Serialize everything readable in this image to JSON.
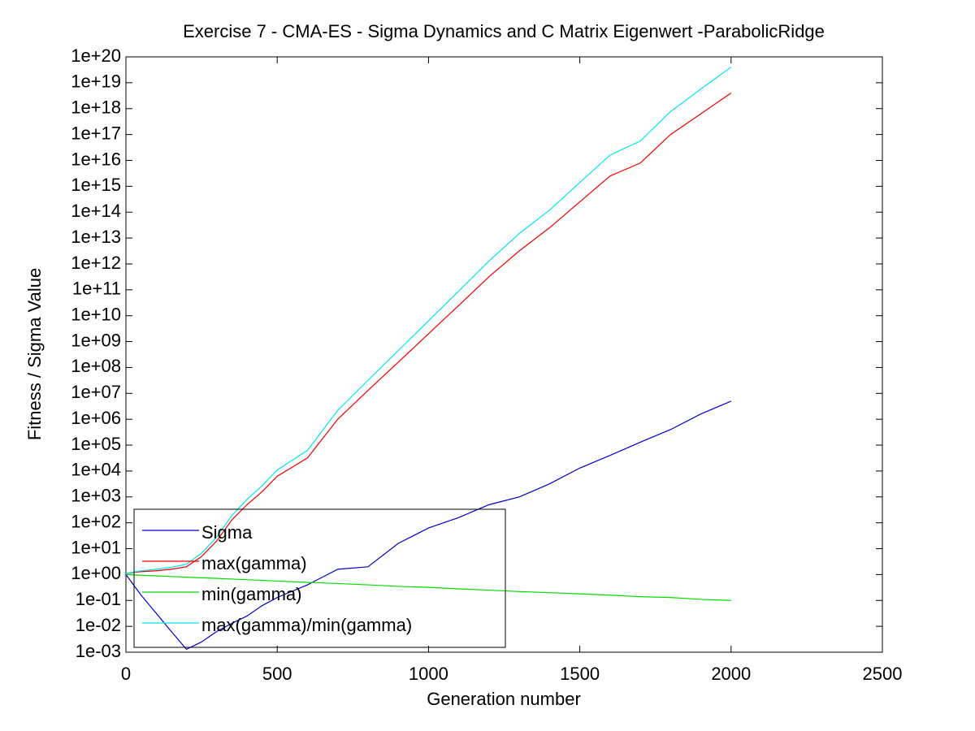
{
  "chart_data": {
    "type": "line",
    "title": "Exercise 7 - CMA-ES - Sigma Dynamics and C Matrix Eigenwert -ParabolicRidge",
    "x_label": "Generation number",
    "y_label": "Fitness / Sigma Value",
    "x": [
      0,
      50,
      100,
      150,
      200,
      250,
      300,
      350,
      400,
      450,
      500,
      600,
      700,
      800,
      900,
      1000,
      1100,
      1200,
      1300,
      1400,
      1500,
      1600,
      1700,
      1800,
      1900,
      2000
    ],
    "series": [
      {
        "name": "Sigma",
        "color": "#0000cc",
        "values": [
          1,
          0.16,
          0.032,
          0.0063,
          0.0013,
          0.0025,
          0.0063,
          0.013,
          0.025,
          0.063,
          0.13,
          0.4,
          1.6,
          2,
          16,
          63,
          160,
          500,
          1000,
          3200,
          13000,
          40000,
          130000,
          400000,
          1600000,
          5000000
        ]
      },
      {
        "name": "max(gamma)",
        "color": "#ee0000",
        "values": [
          1.1,
          1.3,
          1.4,
          1.6,
          2,
          5,
          20,
          130,
          500,
          1600,
          6300,
          32000,
          1000000,
          13000000,
          160000000,
          2000000000,
          25000000000,
          320000000000,
          3200000000000,
          25000000000000,
          250000000000000,
          2500000000000000,
          7900000000000000,
          100000000000000000,
          630000000000000000,
          4000000000000000000
        ]
      },
      {
        "name": "min(gamma)",
        "color": "#00dd00",
        "values": [
          1,
          0.94,
          0.89,
          0.84,
          0.79,
          0.75,
          0.71,
          0.67,
          0.63,
          0.6,
          0.56,
          0.5,
          0.45,
          0.4,
          0.35,
          0.32,
          0.28,
          0.25,
          0.22,
          0.2,
          0.18,
          0.16,
          0.14,
          0.13,
          0.11,
          0.1
        ]
      },
      {
        "name": "max(gamma)/min(gamma)",
        "color": "#00e5ee",
        "values": [
          1.1,
          1.4,
          1.6,
          1.9,
          2.5,
          6.7,
          28,
          190,
          800,
          2700,
          11000,
          63000,
          2200000,
          32000000,
          450000000,
          6300000000,
          90000000000,
          1300000000000,
          15000000000000,
          120000000000000,
          1400000000000000,
          16000000000000000,
          56000000000000000,
          770000000000000000,
          5700000000000000000,
          40000000000000000000
        ]
      }
    ],
    "xlim": [
      0,
      2500
    ],
    "xticks": [
      0,
      500,
      1000,
      1500,
      2000,
      2500
    ],
    "ylim": [
      0.001,
      1e+20
    ],
    "y_scale": "log",
    "yticks": [
      {
        "value": 0.001,
        "label": "1e-03"
      },
      {
        "value": 0.01,
        "label": "1e-02"
      },
      {
        "value": 0.1,
        "label": "1e-01"
      },
      {
        "value": 1,
        "label": "1e+00"
      },
      {
        "value": 10,
        "label": "1e+01"
      },
      {
        "value": 100,
        "label": "1e+02"
      },
      {
        "value": 1000,
        "label": "1e+03"
      },
      {
        "value": 10000,
        "label": "1e+04"
      },
      {
        "value": 100000,
        "label": "1e+05"
      },
      {
        "value": 1000000,
        "label": "1e+06"
      },
      {
        "value": 10000000,
        "label": "1e+07"
      },
      {
        "value": 100000000,
        "label": "1e+08"
      },
      {
        "value": 1000000000,
        "label": "1e+09"
      },
      {
        "value": 10000000000,
        "label": "1e+10"
      },
      {
        "value": 100000000000,
        "label": "1e+11"
      },
      {
        "value": 1000000000000,
        "label": "1e+12"
      },
      {
        "value": 10000000000000,
        "label": "1e+13"
      },
      {
        "value": 100000000000000,
        "label": "1e+14"
      },
      {
        "value": 1000000000000000,
        "label": "1e+15"
      },
      {
        "value": 10000000000000000,
        "label": "1e+16"
      },
      {
        "value": 100000000000000000,
        "label": "1e+17"
      },
      {
        "value": 1000000000000000000,
        "label": "1e+18"
      },
      {
        "value": 10000000000000000000,
        "label": "1e+19"
      },
      {
        "value": 100000000000000000000,
        "label": "1e+20"
      }
    ],
    "grid": false,
    "legend_position": "lower left"
  }
}
